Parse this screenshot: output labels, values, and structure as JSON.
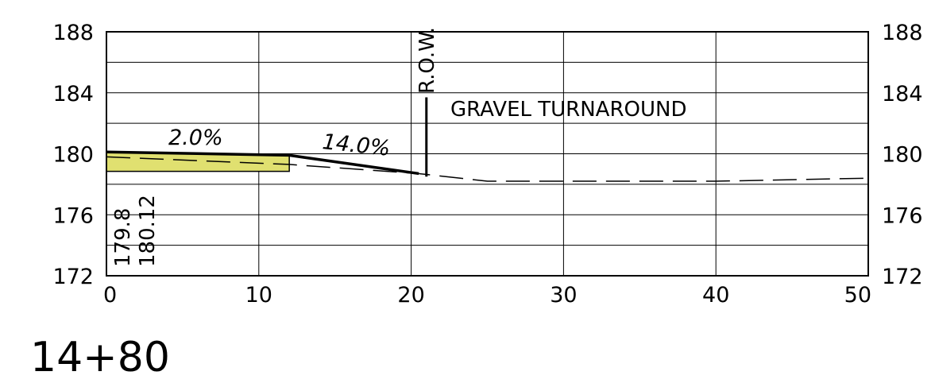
{
  "chart_data": {
    "type": "cross-section",
    "x_ticks": [
      0,
      10,
      20,
      30,
      40,
      50
    ],
    "y_ticks": [
      188,
      184,
      180,
      176,
      172
    ],
    "xlim": [
      0,
      50
    ],
    "ylim": [
      172,
      188
    ],
    "grid_x_step": 10,
    "grid_y_step": 2,
    "existing_ground_dashed": [
      {
        "x": 0,
        "y": 179.8
      },
      {
        "x": 12,
        "y": 179.3
      },
      {
        "x": 20.5,
        "y": 178.7
      },
      {
        "x": 25,
        "y": 178.2
      },
      {
        "x": 40,
        "y": 178.2
      },
      {
        "x": 50,
        "y": 178.4
      }
    ],
    "proposed_surface": [
      {
        "x": 0,
        "y": 180.12
      },
      {
        "x": 12,
        "y": 179.9
      },
      {
        "x": 20.5,
        "y": 178.7
      }
    ],
    "pavement_fill": {
      "x_start": 0,
      "x_end": 12,
      "top_start": 180.12,
      "top_end": 179.9,
      "bottom": 178.85,
      "color": "#e0e070"
    },
    "row_x": 21,
    "row_line_top": 183.7,
    "row_line_bottom": 178.5
  },
  "labels": {
    "row": "R.O.W.",
    "gravel": "GRAVEL TURNAROUND",
    "slope_1": "2.0%",
    "slope_2": "14.0%",
    "elev_existing": "179.8",
    "elev_proposed": "180.12",
    "station": "14+80"
  }
}
